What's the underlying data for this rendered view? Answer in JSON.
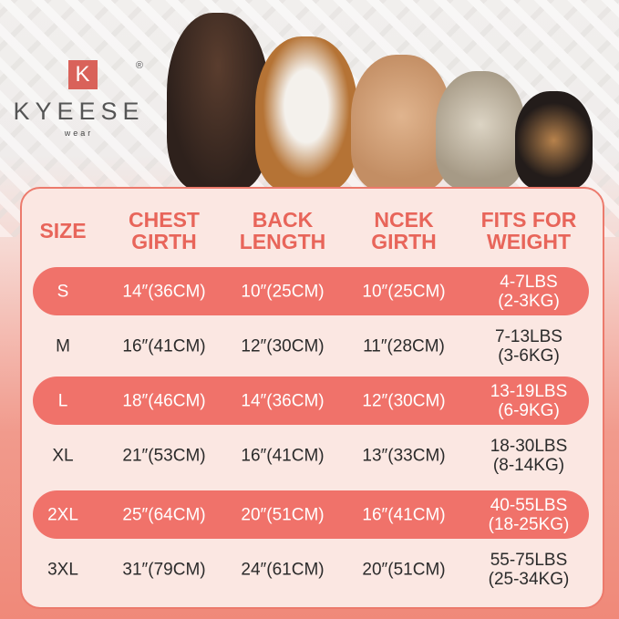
{
  "brand": {
    "logo_letter": "K",
    "name": "KYEESE",
    "sub": "wear",
    "registered": "®"
  },
  "colors": {
    "accent": "#f0726a",
    "header_text": "#e8655a",
    "panel": "#fbe7e2"
  },
  "table": {
    "headers": [
      [
        "SIZE",
        ""
      ],
      [
        "CHEST",
        "GIRTH"
      ],
      [
        "BACK",
        "LENGTH"
      ],
      [
        "NCEK",
        "GIRTH"
      ],
      [
        "FITS FOR",
        "WEIGHT"
      ]
    ],
    "rows": [
      {
        "size": "S",
        "chest": "14″(36CM)",
        "back": "10″(25CM)",
        "neck": "10″(25CM)",
        "weight": [
          "4-7LBS",
          "(2-3KG)"
        ]
      },
      {
        "size": "M",
        "chest": "16″(41CM)",
        "back": "12″(30CM)",
        "neck": "11″(28CM)",
        "weight": [
          "7-13LBS",
          "(3-6KG)"
        ]
      },
      {
        "size": "L",
        "chest": "18″(46CM)",
        "back": "14″(36CM)",
        "neck": "12″(30CM)",
        "weight": [
          "13-19LBS",
          "(6-9KG)"
        ]
      },
      {
        "size": "XL",
        "chest": "21″(53CM)",
        "back": "16″(41CM)",
        "neck": "13″(33CM)",
        "weight": [
          "18-30LBS",
          "(8-14KG)"
        ]
      },
      {
        "size": "2XL",
        "chest": "25″(64CM)",
        "back": "20″(51CM)",
        "neck": "16″(41CM)",
        "weight": [
          "40-55LBS",
          "(18-25KG)"
        ]
      },
      {
        "size": "3XL",
        "chest": "31″(79CM)",
        "back": "24″(61CM)",
        "neck": "20″(51CM)",
        "weight": [
          "55-75LBS",
          "(25-34KG)"
        ]
      }
    ]
  }
}
